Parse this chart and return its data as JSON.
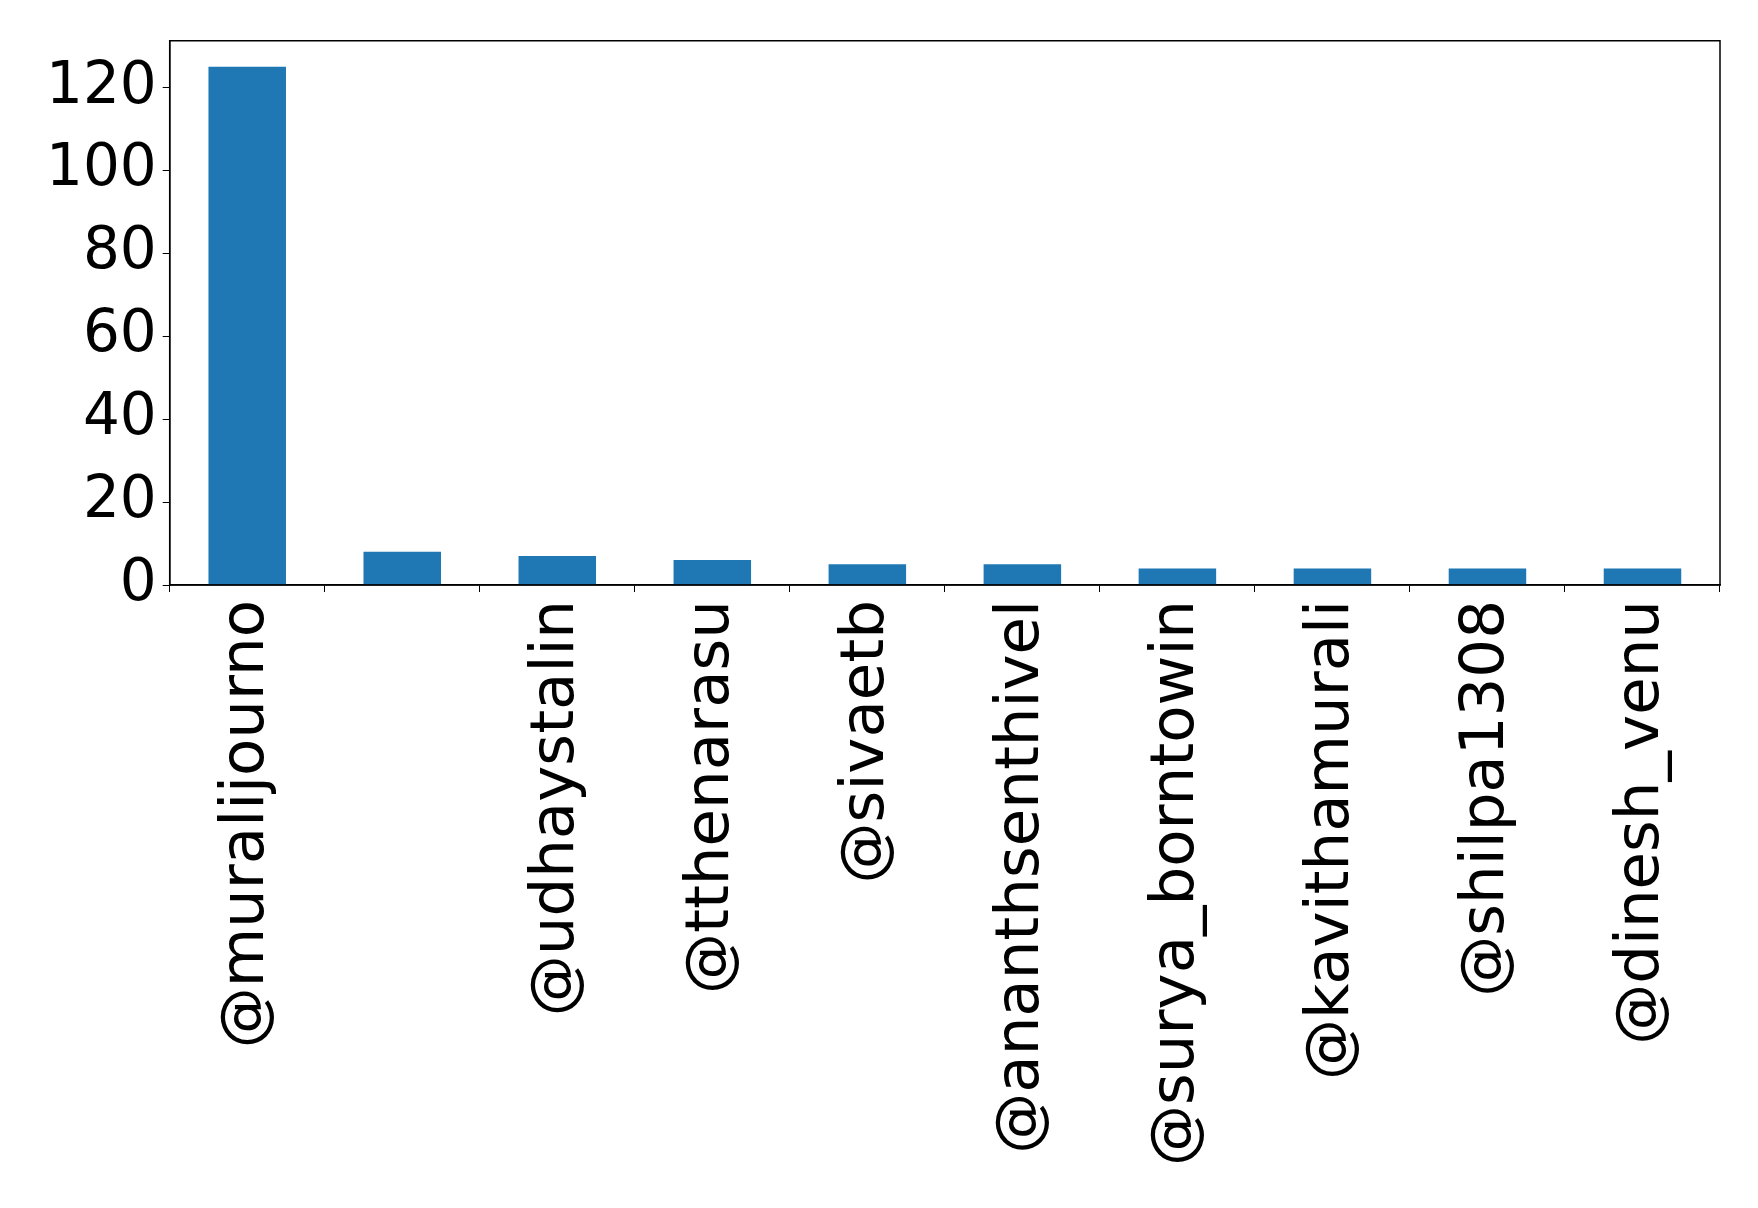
{
  "chart_data": {
    "type": "bar",
    "categories": [
      "@muralijourno",
      null,
      "@udhaystalin",
      "@tthenarasu",
      "@sivaetb",
      "@ananthsenthivel",
      "@surya_borntowin",
      "@kavithamurali",
      "@shilpa1308",
      "@dinesh_venu"
    ],
    "values": [
      125,
      8,
      7,
      6,
      5,
      5,
      4,
      4,
      4,
      4
    ],
    "color": "#1f77b4",
    "ylim": [
      0,
      131.25
    ],
    "yticks": [
      0,
      20,
      40,
      60,
      80,
      100,
      120
    ]
  }
}
